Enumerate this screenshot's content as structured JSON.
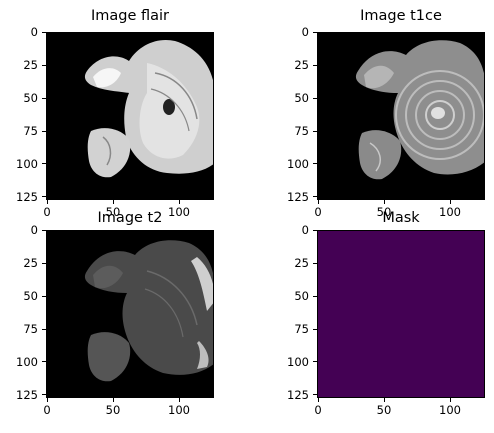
{
  "figure": {
    "panels": [
      {
        "id": "flair",
        "title": "Image flair",
        "image_icon": "brain-mri-slice-icon",
        "tint": "#d9d9d9",
        "x_ticks": [
          "0",
          "50",
          "100"
        ],
        "y_ticks": [
          "0",
          "25",
          "50",
          "75",
          "100",
          "125"
        ]
      },
      {
        "id": "t1ce",
        "title": "Image t1ce",
        "image_icon": "brain-mri-slice-icon",
        "tint": "#9a9a9a",
        "x_ticks": [
          "0",
          "50",
          "100"
        ],
        "y_ticks": [
          "0",
          "25",
          "50",
          "75",
          "100",
          "125"
        ]
      },
      {
        "id": "t2",
        "title": "Image t2",
        "image_icon": "brain-mri-slice-icon",
        "tint": "#5e5e5e",
        "x_ticks": [
          "0",
          "50",
          "100"
        ],
        "y_ticks": [
          "0",
          "25",
          "50",
          "75",
          "100",
          "125"
        ]
      },
      {
        "id": "mask",
        "title": "Mask",
        "image_icon": "empty-mask-icon",
        "fill": "#440154",
        "x_ticks": [
          "0",
          "50",
          "100"
        ],
        "y_ticks": [
          "0",
          "25",
          "50",
          "75",
          "100",
          "125"
        ]
      }
    ]
  }
}
